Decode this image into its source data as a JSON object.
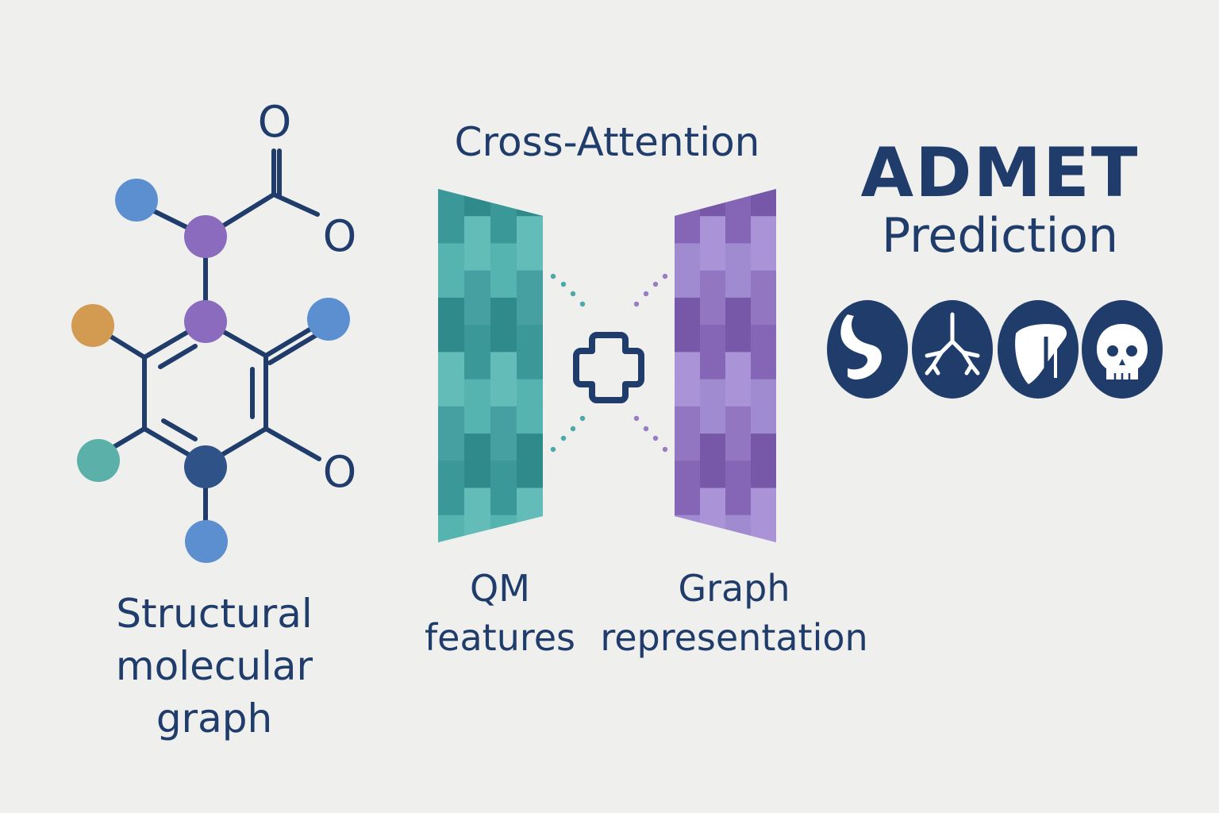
{
  "molecule": {
    "label_lines": [
      "Structural",
      "molecular",
      "graph"
    ],
    "oxygen_labels": [
      "O",
      "O",
      "O"
    ]
  },
  "cross_attention": {
    "title": "Cross-Attention",
    "left_panel_label": [
      "QM",
      "features"
    ],
    "right_panel_label": [
      "Graph",
      "representation"
    ]
  },
  "admet": {
    "title": "ADMET",
    "subtitle": "Prediction",
    "icons": [
      "stomach-icon",
      "lungs-icon",
      "liver-icon",
      "skull-icon"
    ]
  },
  "colors": {
    "background": "#efefed",
    "navy": "#1f3c6b",
    "teal": "#3fa4a4",
    "purple": "#9a7cc4",
    "atom_blue": "#5b8fd0",
    "atom_purple": "#8a6bbd",
    "atom_orange": "#d39a52",
    "atom_teal": "#5bb0aa",
    "atom_navy": "#2f5289"
  }
}
